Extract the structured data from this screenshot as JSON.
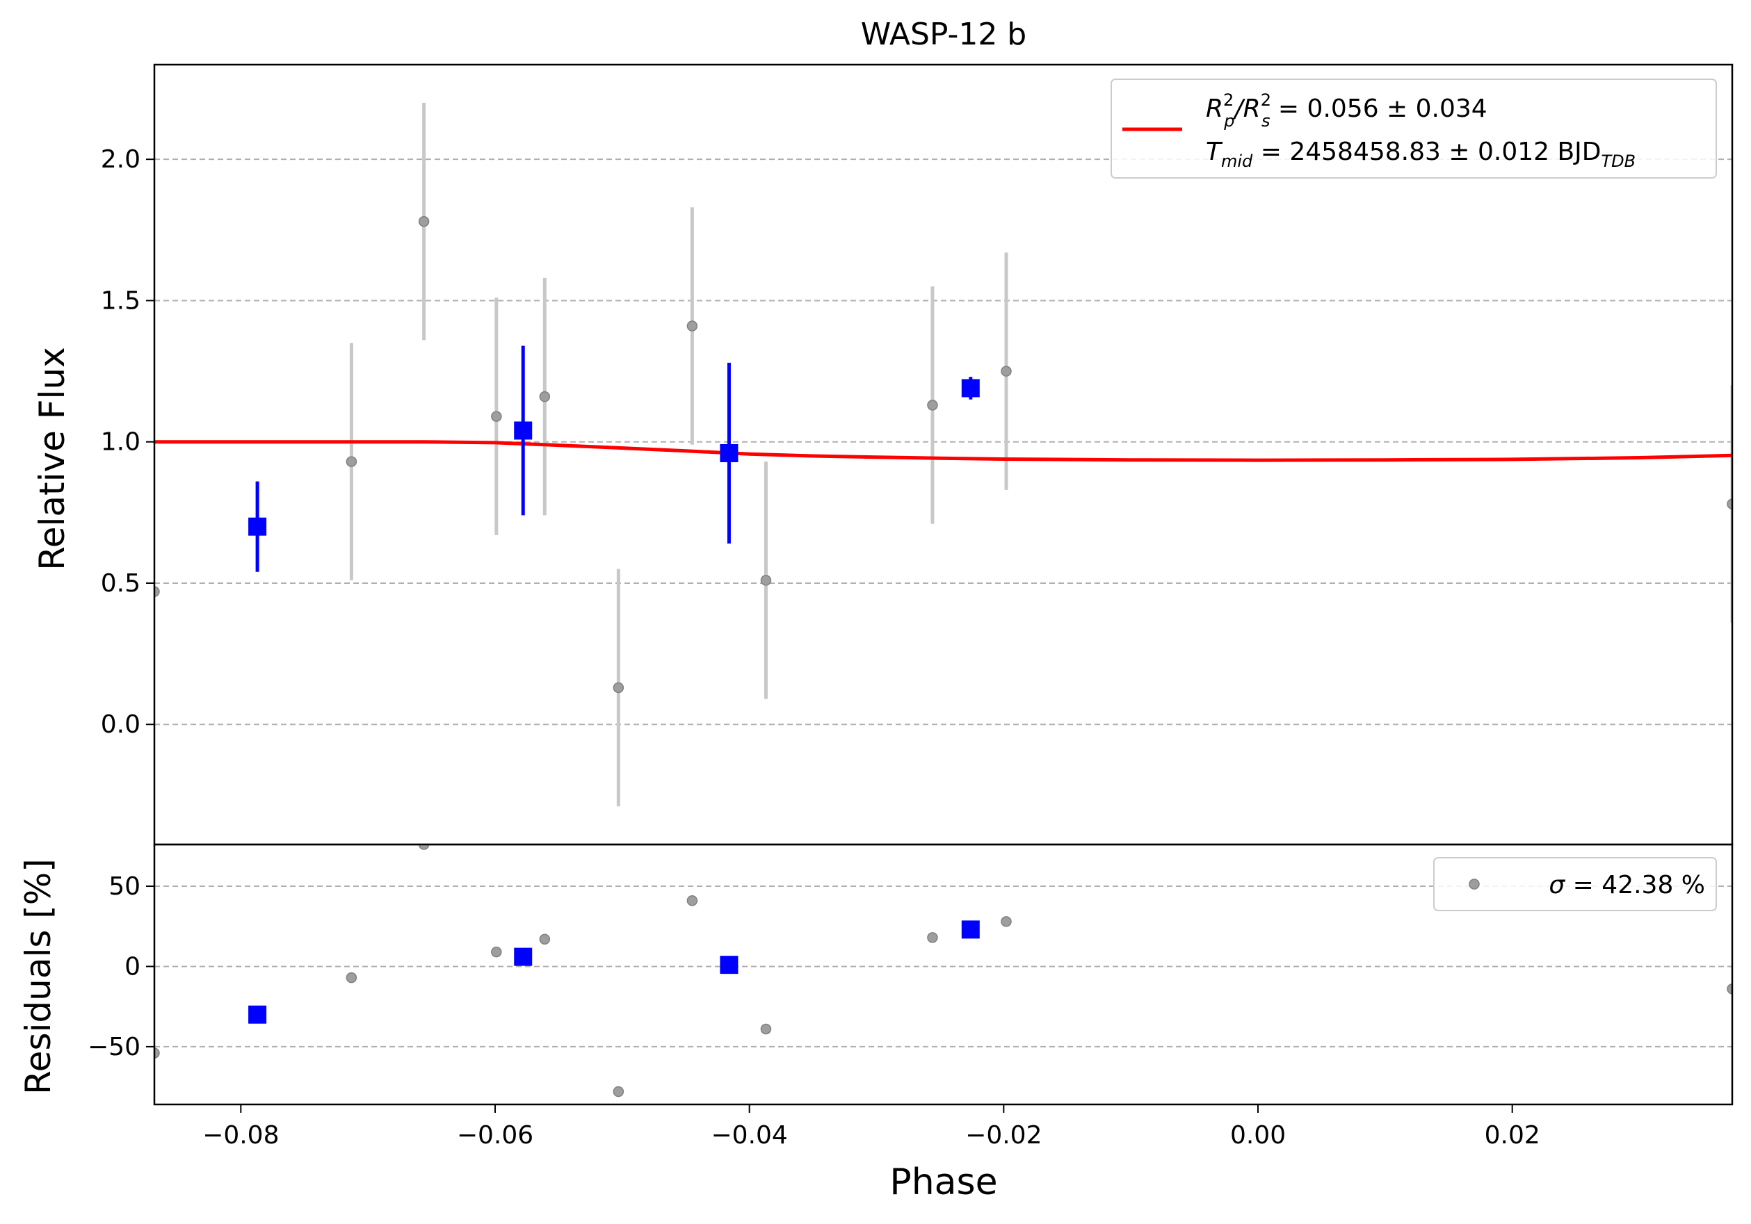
{
  "chart_data": [
    {
      "type": "scatter",
      "title": "WASP-12 b",
      "xlabel": "",
      "ylabel": "Relative Flux",
      "xlim": [
        -0.0868,
        0.0373
      ],
      "ylim": [
        -0.425,
        2.335
      ],
      "grid": "y-dashed",
      "legend_placement": "top-right",
      "yticks": [
        0.0,
        0.5,
        1.0,
        1.5,
        2.0
      ],
      "ytick_labels": [
        "0.0",
        "0.5",
        "1.0",
        "1.5",
        "2.0"
      ],
      "legend": {
        "line1_main": "R",
        "line1_sup1": "2",
        "line1_sub1": "p",
        "line1_slash": "/R",
        "line1_sup2": "2",
        "line1_sub2": "s",
        "line1_rest": " = 0.056 ± 0.034",
        "line2_main": "T",
        "line2_sub": "mid",
        "line2_rest": " = 2458458.83 ± 0.012 BJD",
        "line2_sub2": "TDB"
      },
      "series": [
        {
          "kind": "raw",
          "color": "#9e9e9e",
          "errcolor": "#c8c8c8",
          "x": [
            -0.0868,
            -0.0713,
            -0.0656,
            -0.0599,
            -0.0561,
            -0.0503,
            -0.0445,
            -0.0387,
            -0.0256,
            -0.0198,
            0.0373
          ],
          "y": [
            0.47,
            0.93,
            1.78,
            1.09,
            1.16,
            0.13,
            1.41,
            0.51,
            1.13,
            1.25,
            0.78
          ],
          "yerr": [
            0.0,
            0.42,
            0.42,
            0.42,
            0.42,
            0.42,
            0.42,
            0.42,
            0.42,
            0.42,
            0.42
          ]
        },
        {
          "kind": "binned",
          "color": "#0000ff",
          "x": [
            -0.0787,
            -0.0578,
            -0.0416,
            -0.0226
          ],
          "y": [
            0.7,
            1.04,
            0.96,
            1.19
          ],
          "yerr": [
            0.16,
            0.3,
            0.32,
            0.04
          ]
        }
      ],
      "model": {
        "color": "#ff0000",
        "x": [
          -0.0868,
          -0.0655,
          -0.06,
          -0.055,
          -0.05,
          -0.045,
          -0.04,
          -0.035,
          -0.03,
          -0.025,
          -0.02,
          -0.01,
          0.0,
          0.01,
          0.02,
          0.03,
          0.0373
        ],
        "y": [
          1.0,
          1.0,
          0.997,
          0.988,
          0.978,
          0.968,
          0.957,
          0.95,
          0.946,
          0.942,
          0.939,
          0.936,
          0.935,
          0.936,
          0.938,
          0.944,
          0.952
        ]
      }
    },
    {
      "type": "scatter",
      "xlabel": "Phase",
      "ylabel": "Residuals [%]",
      "xlim": [
        -0.0868,
        0.0373
      ],
      "ylim": [
        -86,
        76
      ],
      "grid": "y-dashed",
      "legend_placement": "top-right",
      "xticks": [
        -0.08,
        -0.06,
        -0.04,
        -0.02,
        0.0,
        0.02
      ],
      "xtick_labels": [
        "−0.08",
        "−0.06",
        "−0.04",
        "−0.02",
        "0.00",
        "0.02"
      ],
      "yticks": [
        -50,
        0,
        50
      ],
      "ytick_labels": [
        "−50",
        "0",
        "50"
      ],
      "legend": {
        "sigma_symbol": "σ",
        "sigma_text": " = 42.38 %"
      },
      "series": [
        {
          "kind": "raw",
          "color": "#9e9e9e",
          "x": [
            -0.0868,
            -0.0713,
            -0.0656,
            -0.0599,
            -0.0561,
            -0.0503,
            -0.0445,
            -0.0387,
            -0.0256,
            -0.0198,
            0.0373
          ],
          "y": [
            -54,
            -7,
            76,
            9,
            17,
            -78,
            41,
            -39,
            18,
            28,
            -14
          ]
        },
        {
          "kind": "binned",
          "color": "#0000ff",
          "x": [
            -0.0787,
            -0.0578,
            -0.0416,
            -0.0226
          ],
          "y": [
            -30,
            6,
            1,
            23
          ]
        }
      ]
    }
  ]
}
